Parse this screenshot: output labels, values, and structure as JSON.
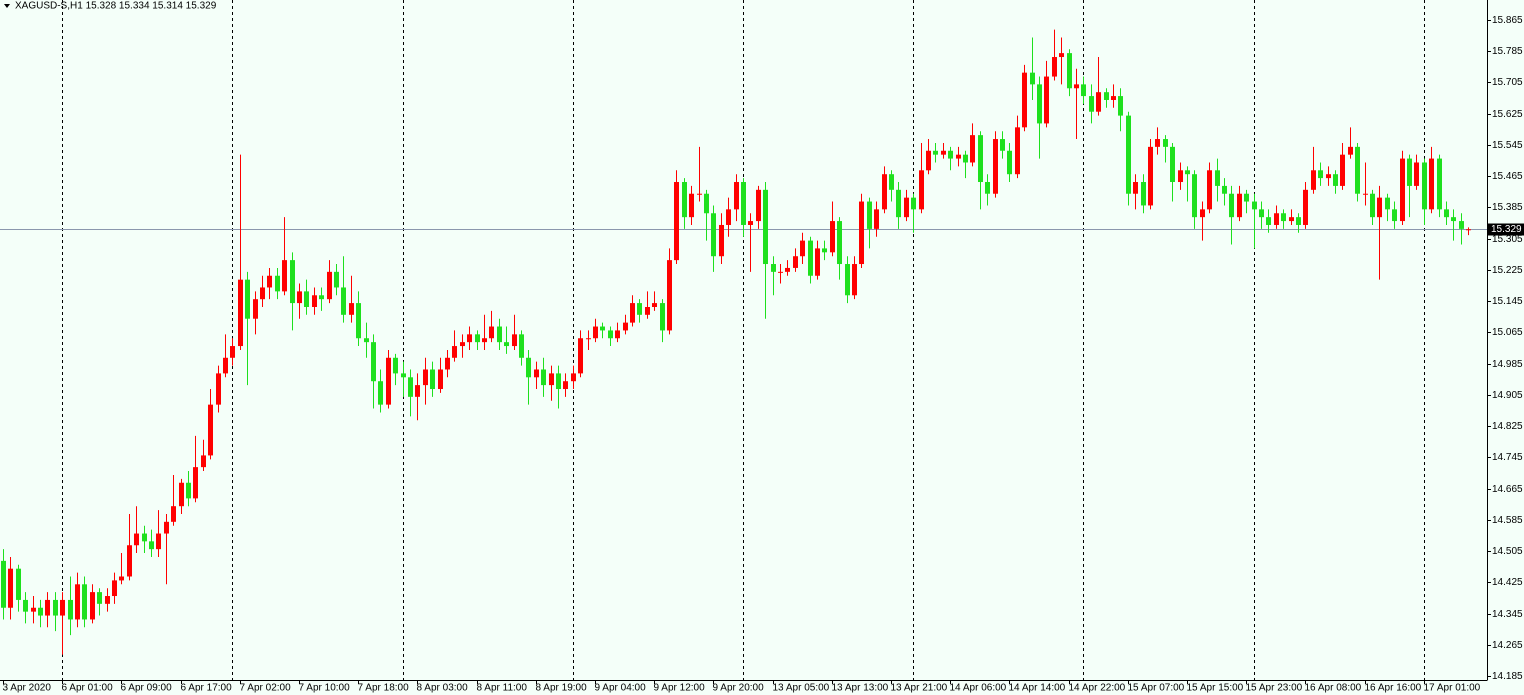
{
  "chart_data": {
    "type": "candlestick",
    "title": "XAGUSD-S,H1  15.328 15.334 15.314 15.329",
    "up_color": "#ff0000",
    "down_color": "#1ee01e",
    "ylim": [
      14.175,
      15.916
    ],
    "yticks": [
      15.865,
      15.785,
      15.705,
      15.625,
      15.545,
      15.465,
      15.385,
      15.305,
      15.225,
      15.145,
      15.065,
      14.985,
      14.905,
      14.825,
      14.745,
      14.665,
      14.585,
      14.505,
      14.425,
      14.345,
      14.265,
      14.185
    ],
    "current_price": 15.329,
    "day_separators": [
      8,
      31,
      54,
      77,
      100,
      123,
      146,
      169,
      192
    ],
    "categories": [
      "3 Apr 2020",
      null,
      null,
      null,
      null,
      null,
      null,
      null,
      "6 Apr 01:00",
      null,
      null,
      null,
      null,
      null,
      null,
      null,
      "6 Apr 09:00",
      null,
      null,
      null,
      null,
      null,
      null,
      null,
      "6 Apr 17:00",
      null,
      null,
      null,
      null,
      null,
      null,
      null,
      "7 Apr 02:00",
      null,
      null,
      null,
      null,
      null,
      null,
      null,
      "7 Apr 10:00",
      null,
      null,
      null,
      null,
      null,
      null,
      null,
      "7 Apr 18:00",
      null,
      null,
      null,
      null,
      null,
      null,
      null,
      "8 Apr 03:00",
      null,
      null,
      null,
      null,
      null,
      null,
      null,
      "8 Apr 11:00",
      null,
      null,
      null,
      null,
      null,
      null,
      null,
      "8 Apr 19:00",
      null,
      null,
      null,
      null,
      null,
      null,
      null,
      "9 Apr 04:00",
      null,
      null,
      null,
      null,
      null,
      null,
      null,
      "9 Apr 12:00",
      null,
      null,
      null,
      null,
      null,
      null,
      null,
      "9 Apr 20:00",
      null,
      null,
      null,
      null,
      null,
      null,
      null,
      "13 Apr 05:00",
      null,
      null,
      null,
      null,
      null,
      null,
      null,
      "13 Apr 13:00",
      null,
      null,
      null,
      null,
      null,
      null,
      null,
      "13 Apr 21:00",
      null,
      null,
      null,
      null,
      null,
      null,
      null,
      "14 Apr 06:00",
      null,
      null,
      null,
      null,
      null,
      null,
      null,
      "14 Apr 14:00",
      null,
      null,
      null,
      null,
      null,
      null,
      null,
      "14 Apr 22:00",
      null,
      null,
      null,
      null,
      null,
      null,
      null,
      "15 Apr 07:00",
      null,
      null,
      null,
      null,
      null,
      null,
      null,
      "15 Apr 15:00",
      null,
      null,
      null,
      null,
      null,
      null,
      null,
      "15 Apr 23:00",
      null,
      null,
      null,
      null,
      null,
      null,
      null,
      "16 Apr 08:00",
      null,
      null,
      null,
      null,
      null,
      null,
      null,
      "16 Apr 16:00",
      null,
      null,
      null,
      null,
      null,
      null,
      null,
      "17 Apr 01:00",
      null,
      null,
      null,
      null,
      null,
      null
    ],
    "candles": [
      [
        14.48,
        14.51,
        14.33,
        14.36
      ],
      [
        14.36,
        14.49,
        14.33,
        14.46
      ],
      [
        14.46,
        14.47,
        14.35,
        14.38
      ],
      [
        14.38,
        14.4,
        14.32,
        14.35
      ],
      [
        14.35,
        14.39,
        14.32,
        14.36
      ],
      [
        14.36,
        14.38,
        14.31,
        14.34
      ],
      [
        14.34,
        14.4,
        14.31,
        14.38
      ],
      [
        14.38,
        14.4,
        14.3,
        14.34
      ],
      [
        14.34,
        14.4,
        14.24,
        14.38
      ],
      [
        14.38,
        14.44,
        14.29,
        14.33
      ],
      [
        14.33,
        14.45,
        14.31,
        14.42
      ],
      [
        14.42,
        14.44,
        14.31,
        14.33
      ],
      [
        14.33,
        14.42,
        14.32,
        14.4
      ],
      [
        14.4,
        14.41,
        14.34,
        14.37
      ],
      [
        14.37,
        14.41,
        14.35,
        14.39
      ],
      [
        14.39,
        14.45,
        14.37,
        14.43
      ],
      [
        14.43,
        14.5,
        14.42,
        14.44
      ],
      [
        14.44,
        14.6,
        14.43,
        14.52
      ],
      [
        14.52,
        14.62,
        14.5,
        14.55
      ],
      [
        14.55,
        14.57,
        14.5,
        14.53
      ],
      [
        14.53,
        14.56,
        14.49,
        14.51
      ],
      [
        14.51,
        14.61,
        14.49,
        14.55
      ],
      [
        14.55,
        14.6,
        14.42,
        14.58
      ],
      [
        14.58,
        14.7,
        14.57,
        14.62
      ],
      [
        14.62,
        14.69,
        14.6,
        14.68
      ],
      [
        14.68,
        14.71,
        14.62,
        14.64
      ],
      [
        14.64,
        14.8,
        14.63,
        14.72
      ],
      [
        14.72,
        14.79,
        14.71,
        14.75
      ],
      [
        14.75,
        14.92,
        14.74,
        14.88
      ],
      [
        14.88,
        14.98,
        14.86,
        14.96
      ],
      [
        14.96,
        15.06,
        14.95,
        15.0
      ],
      [
        15.0,
        15.05,
        14.98,
        15.03
      ],
      [
        15.03,
        15.52,
        15.02,
        15.2
      ],
      [
        15.2,
        15.22,
        14.93,
        15.1
      ],
      [
        15.1,
        15.17,
        15.06,
        15.15
      ],
      [
        15.15,
        15.21,
        15.13,
        15.18
      ],
      [
        15.18,
        15.23,
        15.15,
        15.21
      ],
      [
        15.21,
        15.23,
        15.15,
        15.17
      ],
      [
        15.17,
        15.36,
        15.16,
        15.25
      ],
      [
        15.25,
        15.27,
        15.07,
        15.14
      ],
      [
        15.14,
        15.19,
        15.1,
        15.17
      ],
      [
        15.17,
        15.2,
        15.11,
        15.13
      ],
      [
        15.13,
        15.18,
        15.11,
        15.16
      ],
      [
        15.16,
        15.18,
        15.12,
        15.15
      ],
      [
        15.15,
        15.25,
        15.14,
        15.22
      ],
      [
        15.22,
        15.24,
        15.16,
        15.18
      ],
      [
        15.18,
        15.26,
        15.09,
        15.11
      ],
      [
        15.11,
        15.21,
        15.09,
        15.14
      ],
      [
        15.14,
        15.17,
        15.03,
        15.05
      ],
      [
        15.05,
        15.09,
        15.0,
        15.04
      ],
      [
        15.04,
        15.06,
        14.87,
        14.94
      ],
      [
        14.94,
        14.97,
        14.86,
        14.88
      ],
      [
        14.88,
        15.02,
        14.87,
        15.0
      ],
      [
        15.0,
        15.01,
        14.93,
        14.96
      ],
      [
        14.96,
        14.99,
        14.9,
        14.95
      ],
      [
        14.95,
        14.97,
        14.85,
        14.9
      ],
      [
        14.9,
        14.96,
        14.84,
        14.93
      ],
      [
        14.93,
        15.0,
        14.88,
        14.97
      ],
      [
        14.97,
        14.99,
        14.9,
        14.92
      ],
      [
        14.92,
        15.0,
        14.91,
        14.97
      ],
      [
        14.97,
        15.02,
        14.95,
        15.0
      ],
      [
        15.0,
        15.07,
        14.99,
        15.03
      ],
      [
        15.03,
        15.06,
        15.0,
        15.04
      ],
      [
        15.04,
        15.08,
        15.02,
        15.06
      ],
      [
        15.06,
        15.07,
        15.02,
        15.04
      ],
      [
        15.04,
        15.11,
        15.02,
        15.05
      ],
      [
        15.05,
        15.12,
        15.04,
        15.08
      ],
      [
        15.08,
        15.1,
        15.02,
        15.04
      ],
      [
        15.04,
        15.08,
        15.01,
        15.03
      ],
      [
        15.03,
        15.11,
        15.02,
        15.06
      ],
      [
        15.06,
        15.07,
        14.98,
        15.0
      ],
      [
        15.0,
        15.02,
        14.88,
        14.95
      ],
      [
        14.95,
        14.99,
        14.92,
        14.97
      ],
      [
        14.97,
        15.0,
        14.9,
        14.93
      ],
      [
        14.93,
        14.98,
        14.89,
        14.96
      ],
      [
        14.96,
        14.98,
        14.87,
        14.92
      ],
      [
        14.92,
        14.96,
        14.9,
        14.94
      ],
      [
        14.94,
        14.98,
        14.92,
        14.96
      ],
      [
        14.96,
        15.07,
        14.95,
        15.05
      ],
      [
        15.05,
        15.07,
        15.02,
        15.05
      ],
      [
        15.05,
        15.1,
        15.04,
        15.08
      ],
      [
        15.08,
        15.09,
        15.05,
        15.07
      ],
      [
        15.07,
        15.08,
        15.03,
        15.05
      ],
      [
        15.05,
        15.09,
        15.04,
        15.07
      ],
      [
        15.07,
        15.11,
        15.06,
        15.09
      ],
      [
        15.09,
        15.16,
        15.08,
        15.14
      ],
      [
        15.14,
        15.15,
        15.09,
        15.11
      ],
      [
        15.11,
        15.17,
        15.1,
        15.13
      ],
      [
        15.13,
        15.17,
        15.12,
        15.14
      ],
      [
        15.14,
        15.15,
        15.04,
        15.07
      ],
      [
        15.07,
        15.28,
        15.06,
        15.25
      ],
      [
        15.25,
        15.48,
        15.24,
        15.45
      ],
      [
        15.45,
        15.46,
        15.33,
        15.36
      ],
      [
        15.36,
        15.44,
        15.34,
        15.42
      ],
      [
        15.42,
        15.54,
        15.4,
        15.42
      ],
      [
        15.42,
        15.43,
        15.3,
        15.37
      ],
      [
        15.37,
        15.39,
        15.22,
        15.26
      ],
      [
        15.26,
        15.37,
        15.24,
        15.34
      ],
      [
        15.34,
        15.41,
        15.31,
        15.38
      ],
      [
        15.38,
        15.47,
        15.35,
        15.45
      ],
      [
        15.45,
        15.46,
        15.31,
        15.34
      ],
      [
        15.34,
        15.37,
        15.22,
        15.35
      ],
      [
        15.35,
        15.44,
        15.33,
        15.43
      ],
      [
        15.43,
        15.45,
        15.1,
        15.24
      ],
      [
        15.24,
        15.26,
        15.16,
        15.22
      ],
      [
        15.22,
        15.24,
        15.19,
        15.22
      ],
      [
        15.22,
        15.25,
        15.21,
        15.23
      ],
      [
        15.23,
        15.28,
        15.22,
        15.26
      ],
      [
        15.26,
        15.32,
        15.24,
        15.3
      ],
      [
        15.3,
        15.31,
        15.19,
        15.21
      ],
      [
        15.21,
        15.3,
        15.2,
        15.28
      ],
      [
        15.28,
        15.3,
        15.25,
        15.27
      ],
      [
        15.27,
        15.4,
        15.26,
        15.35
      ],
      [
        15.35,
        15.36,
        15.2,
        15.24
      ],
      [
        15.24,
        15.26,
        15.14,
        15.16
      ],
      [
        15.16,
        15.26,
        15.15,
        15.24
      ],
      [
        15.24,
        15.42,
        15.23,
        15.4
      ],
      [
        15.4,
        15.41,
        15.28,
        15.33
      ],
      [
        15.33,
        15.4,
        15.31,
        15.38
      ],
      [
        15.38,
        15.49,
        15.37,
        15.47
      ],
      [
        15.47,
        15.48,
        15.4,
        15.43
      ],
      [
        15.43,
        15.45,
        15.33,
        15.36
      ],
      [
        15.36,
        15.43,
        15.35,
        15.41
      ],
      [
        15.41,
        15.42,
        15.32,
        15.38
      ],
      [
        15.38,
        15.55,
        15.37,
        15.48
      ],
      [
        15.48,
        15.56,
        15.47,
        15.53
      ],
      [
        15.53,
        15.55,
        15.5,
        15.52
      ],
      [
        15.52,
        15.55,
        15.51,
        15.53
      ],
      [
        15.53,
        15.54,
        15.48,
        15.51
      ],
      [
        15.51,
        15.54,
        15.49,
        15.52
      ],
      [
        15.52,
        15.53,
        15.46,
        15.5
      ],
      [
        15.5,
        15.6,
        15.49,
        15.57
      ],
      [
        15.57,
        15.58,
        15.38,
        15.45
      ],
      [
        15.45,
        15.47,
        15.39,
        15.42
      ],
      [
        15.42,
        15.58,
        15.41,
        15.56
      ],
      [
        15.56,
        15.58,
        15.51,
        15.53
      ],
      [
        15.53,
        15.55,
        15.45,
        15.47
      ],
      [
        15.47,
        15.62,
        15.46,
        15.59
      ],
      [
        15.59,
        15.75,
        15.58,
        15.73
      ],
      [
        15.73,
        15.82,
        15.66,
        15.7
      ],
      [
        15.7,
        15.72,
        15.51,
        15.6
      ],
      [
        15.6,
        15.76,
        15.59,
        15.72
      ],
      [
        15.72,
        15.84,
        15.71,
        15.77
      ],
      [
        15.77,
        15.82,
        15.7,
        15.78
      ],
      [
        15.78,
        15.79,
        15.67,
        15.69
      ],
      [
        15.69,
        15.74,
        15.56,
        15.7
      ],
      [
        15.7,
        15.72,
        15.65,
        15.67
      ],
      [
        15.67,
        15.7,
        15.6,
        15.63
      ],
      [
        15.63,
        15.77,
        15.62,
        15.68
      ],
      [
        15.68,
        15.69,
        15.64,
        15.66
      ],
      [
        15.66,
        15.7,
        15.64,
        15.67
      ],
      [
        15.67,
        15.69,
        15.58,
        15.62
      ],
      [
        15.62,
        15.63,
        15.39,
        15.42
      ],
      [
        15.42,
        15.47,
        15.38,
        15.45
      ],
      [
        15.45,
        15.47,
        15.37,
        15.39
      ],
      [
        15.39,
        15.56,
        15.38,
        15.54
      ],
      [
        15.54,
        15.59,
        15.52,
        15.56
      ],
      [
        15.56,
        15.57,
        15.5,
        15.54
      ],
      [
        15.54,
        15.55,
        15.4,
        15.45
      ],
      [
        15.45,
        15.5,
        15.43,
        15.48
      ],
      [
        15.48,
        15.49,
        15.4,
        15.47
      ],
      [
        15.47,
        15.48,
        15.33,
        15.36
      ],
      [
        15.36,
        15.4,
        15.3,
        15.38
      ],
      [
        15.38,
        15.5,
        15.37,
        15.48
      ],
      [
        15.48,
        15.51,
        15.4,
        15.44
      ],
      [
        15.44,
        15.46,
        15.39,
        15.42
      ],
      [
        15.42,
        15.44,
        15.29,
        15.36
      ],
      [
        15.36,
        15.44,
        15.35,
        15.42
      ],
      [
        15.42,
        15.43,
        15.37,
        15.4
      ],
      [
        15.4,
        15.42,
        15.28,
        15.38
      ],
      [
        15.38,
        15.4,
        15.33,
        15.36
      ],
      [
        15.36,
        15.38,
        15.32,
        15.34
      ],
      [
        15.34,
        15.39,
        15.33,
        15.37
      ],
      [
        15.37,
        15.38,
        15.33,
        15.35
      ],
      [
        15.35,
        15.38,
        15.34,
        15.36
      ],
      [
        15.36,
        15.37,
        15.32,
        15.34
      ],
      [
        15.34,
        15.45,
        15.33,
        15.43
      ],
      [
        15.43,
        15.54,
        15.42,
        15.48
      ],
      [
        15.48,
        15.5,
        15.44,
        15.46
      ],
      [
        15.46,
        15.49,
        15.44,
        15.47
      ],
      [
        15.47,
        15.48,
        15.42,
        15.44
      ],
      [
        15.44,
        15.55,
        15.43,
        15.52
      ],
      [
        15.52,
        15.59,
        15.51,
        15.54
      ],
      [
        15.54,
        15.55,
        15.4,
        15.42
      ],
      [
        15.42,
        15.5,
        15.39,
        15.42
      ],
      [
        15.42,
        15.43,
        15.34,
        15.36
      ],
      [
        15.36,
        15.44,
        15.2,
        15.41
      ],
      [
        15.41,
        15.42,
        15.35,
        15.38
      ],
      [
        15.38,
        15.4,
        15.33,
        15.35
      ],
      [
        15.35,
        15.53,
        15.34,
        15.51
      ],
      [
        15.51,
        15.52,
        15.36,
        15.44
      ],
      [
        15.44,
        15.52,
        15.43,
        15.5
      ],
      [
        15.5,
        15.51,
        15.34,
        15.38
      ],
      [
        15.38,
        15.54,
        15.37,
        15.51
      ],
      [
        15.51,
        15.52,
        15.36,
        15.38
      ],
      [
        15.38,
        15.4,
        15.34,
        15.36
      ],
      [
        15.36,
        15.38,
        15.3,
        15.35
      ],
      [
        15.35,
        15.37,
        15.29,
        15.33
      ],
      [
        15.328,
        15.334,
        15.314,
        15.329
      ]
    ]
  }
}
